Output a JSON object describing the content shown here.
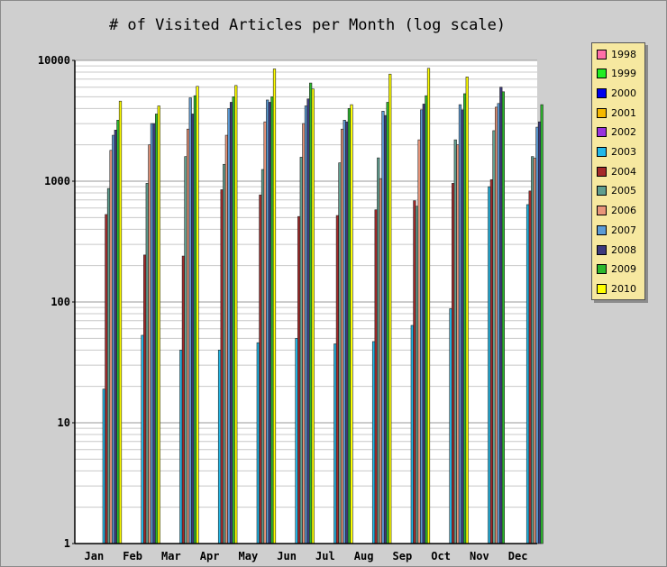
{
  "chart_data": {
    "type": "bar",
    "title": "# of Visited Articles per Month (log scale)",
    "xlabel": "",
    "ylabel": "",
    "y_scale": "log",
    "ylim": [
      1,
      10000
    ],
    "y_ticks": [
      "1",
      "10",
      "100",
      "1000",
      "10000"
    ],
    "grid": true,
    "legend_position": "right",
    "categories": [
      "Jan",
      "Feb",
      "Mar",
      "Apr",
      "May",
      "Jun",
      "Jul",
      "Aug",
      "Sep",
      "Oct",
      "Nov",
      "Dec"
    ],
    "series": [
      {
        "name": "1998",
        "color": "#ff6fa8",
        "values": [
          null,
          null,
          null,
          null,
          null,
          null,
          null,
          null,
          null,
          null,
          null,
          null
        ]
      },
      {
        "name": "1999",
        "color": "#22ee22",
        "values": [
          null,
          null,
          null,
          null,
          null,
          null,
          null,
          null,
          null,
          null,
          null,
          null
        ]
      },
      {
        "name": "2000",
        "color": "#0000ee",
        "values": [
          null,
          null,
          null,
          null,
          null,
          null,
          null,
          null,
          null,
          null,
          null,
          null
        ]
      },
      {
        "name": "2001",
        "color": "#f5b800",
        "values": [
          null,
          null,
          null,
          null,
          null,
          null,
          null,
          null,
          null,
          null,
          null,
          null
        ]
      },
      {
        "name": "2002",
        "color": "#9933dd",
        "values": [
          null,
          null,
          null,
          null,
          null,
          null,
          null,
          null,
          null,
          null,
          null,
          null
        ]
      },
      {
        "name": "2003",
        "color": "#22b8e8",
        "values": [
          19,
          53,
          40,
          40,
          46,
          50,
          45,
          47,
          64,
          88,
          900,
          640
        ]
      },
      {
        "name": "2004",
        "color": "#a52a2a",
        "values": [
          530,
          245,
          240,
          850,
          770,
          510,
          520,
          580,
          690,
          960,
          1030,
          830
        ]
      },
      {
        "name": "2005",
        "color": "#5f9e8f",
        "values": [
          870,
          960,
          1600,
          1380,
          1250,
          1580,
          1420,
          1560,
          620,
          2200,
          2620,
          1600
        ]
      },
      {
        "name": "2006",
        "color": "#e8957a",
        "values": [
          1800,
          2000,
          2700,
          2400,
          3100,
          3000,
          2700,
          1050,
          2200,
          2000,
          4100,
          1550
        ]
      },
      {
        "name": "2007",
        "color": "#5b9bd5",
        "values": [
          2400,
          3000,
          4900,
          4000,
          4700,
          4200,
          3200,
          3800,
          3900,
          4300,
          4400,
          2800
        ]
      },
      {
        "name": "2008",
        "color": "#3d3a7e",
        "values": [
          2650,
          3000,
          3600,
          4500,
          4500,
          4800,
          3100,
          3500,
          4350,
          3900,
          6000,
          3100
        ]
      },
      {
        "name": "2009",
        "color": "#2db82d",
        "values": [
          3200,
          3600,
          5100,
          5000,
          5000,
          6500,
          4000,
          4500,
          5100,
          5300,
          5500,
          4300
        ]
      },
      {
        "name": "2010",
        "color": "#ffff00",
        "values": [
          4600,
          4200,
          6100,
          6200,
          8500,
          5800,
          4300,
          7700,
          8600,
          7300,
          null,
          null
        ]
      }
    ]
  }
}
